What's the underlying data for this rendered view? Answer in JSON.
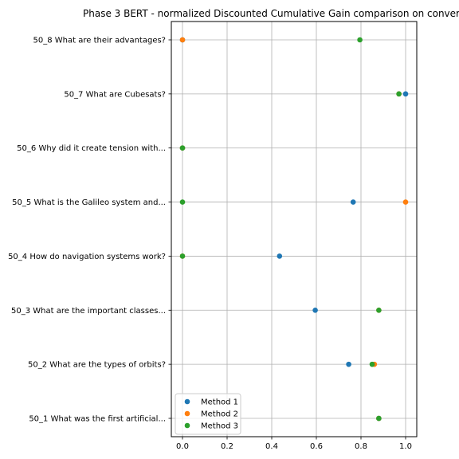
{
  "chart_data": {
    "type": "scatter",
    "title": "Phase 3 BERT - normalized Discounted Cumulative Gain comparison on conver",
    "xlabel": "",
    "ylabel": "",
    "xlim": [
      -0.05,
      1.05
    ],
    "x_ticks": [
      "0.0",
      "0.2",
      "0.4",
      "0.6",
      "0.8",
      "1.0"
    ],
    "categories": [
      "50_1 What was the first artificial...",
      "50_2 What are the types of orbits?",
      "50_3 What are the important classes...",
      "50_4 How do navigation systems work?",
      "50_5 What is the Galileo system and...",
      "50_6 Why did it create tension with...",
      "50_7 What are Cubesats?",
      "50_8 What are their advantages?"
    ],
    "grid": true,
    "legend_position": "lower-left",
    "series": [
      {
        "name": "Method 1",
        "color": "#1f77b4",
        "values": [
          0.88,
          0.745,
          0.595,
          0.435,
          0.765,
          0.0,
          1.0,
          0.0
        ]
      },
      {
        "name": "Method 2",
        "color": "#ff7f0e",
        "values": [
          0.88,
          0.86,
          0.88,
          0.0,
          1.0,
          0.0,
          0.97,
          0.0
        ]
      },
      {
        "name": "Method 3",
        "color": "#2ca02c",
        "values": [
          0.88,
          0.85,
          0.88,
          0.0,
          0.0,
          0.0,
          0.97,
          0.795
        ]
      }
    ]
  }
}
